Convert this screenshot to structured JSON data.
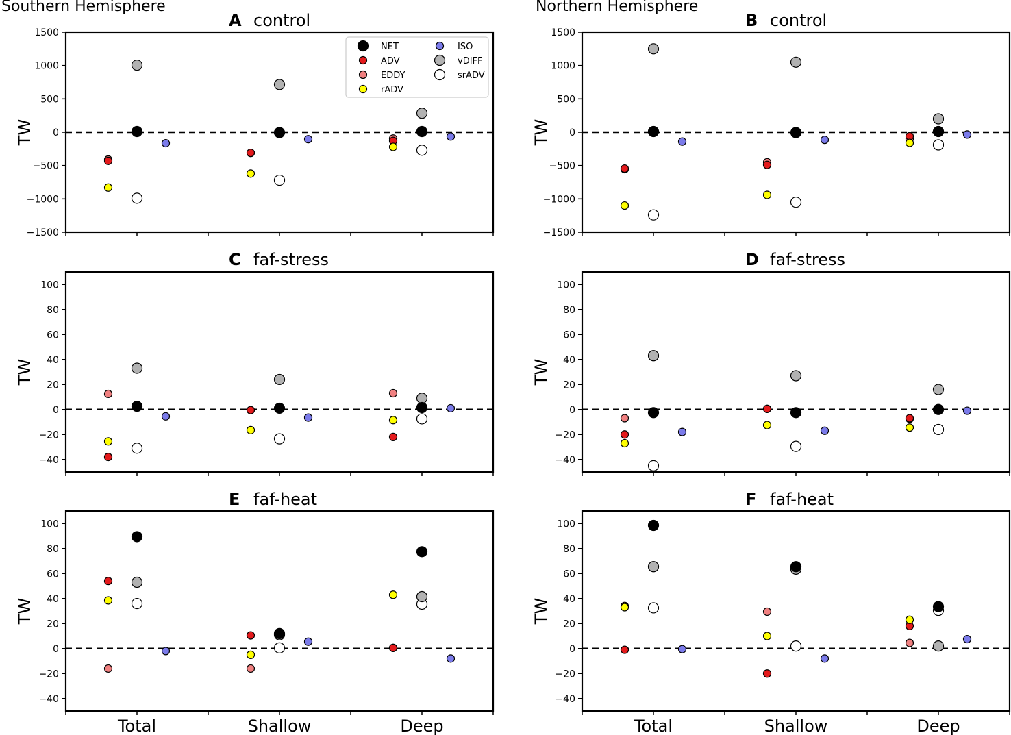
{
  "hemisphere_labels": {
    "left": "Southern Hemisphere",
    "right": "Northern Hemisphere"
  },
  "styles": {
    "NET": {
      "fill": "#000000",
      "large": true
    },
    "ADV": {
      "fill": "#e41a1c",
      "large": false
    },
    "EDDY": {
      "fill": "#f08080",
      "large": false
    },
    "rADV": {
      "fill": "#ffff00",
      "large": false
    },
    "ISO": {
      "fill": "#7b7bea",
      "large": false
    },
    "vDIFF": {
      "fill": "#b2b2b2",
      "large": true
    },
    "srADV": {
      "fill": "#ffffff",
      "large": true
    }
  },
  "legend": [
    {
      "key": "NET",
      "label": "NET"
    },
    {
      "key": "ADV",
      "label": "ADV"
    },
    {
      "key": "EDDY",
      "label": "EDDY"
    },
    {
      "key": "rADV",
      "label": "rADV"
    },
    {
      "key": "ISO",
      "label": "ISO"
    },
    {
      "key": "vDIFF",
      "label": "vDIFF"
    },
    {
      "key": "srADV",
      "label": "srADV"
    }
  ],
  "chart_data": [
    {
      "type": "scatter",
      "letter": "A",
      "title": "control",
      "ylabel": "TW",
      "categories": [
        "Total",
        "Shallow",
        "Deep"
      ],
      "ylim": [
        -1500,
        1500
      ],
      "yticks": [
        -1500,
        -1000,
        -500,
        0,
        500,
        1000,
        1500
      ],
      "reference_line": 0,
      "legend": true,
      "series": {
        "NET": [
          10,
          -5,
          10
        ],
        "ADV": [
          -430,
          -310,
          -130
        ],
        "EDDY": [
          -410,
          -310,
          -95
        ],
        "rADV": [
          -830,
          -620,
          -220
        ],
        "ISO": [
          -165,
          -105,
          -65
        ],
        "vDIFF": [
          1005,
          715,
          285
        ],
        "srADV": [
          -990,
          -720,
          -270
        ]
      }
    },
    {
      "type": "scatter",
      "letter": "B",
      "title": "control",
      "ylabel": "TW",
      "categories": [
        "Total",
        "Shallow",
        "Deep"
      ],
      "ylim": [
        -1500,
        1500
      ],
      "yticks": [
        -1500,
        -1000,
        -500,
        0,
        500,
        1000,
        1500
      ],
      "reference_line": 0,
      "legend": false,
      "series": {
        "NET": [
          10,
          -5,
          10
        ],
        "ADV": [
          -545,
          -490,
          -60
        ],
        "EDDY": [
          -555,
          -450,
          -100
        ],
        "rADV": [
          -1100,
          -940,
          -160
        ],
        "ISO": [
          -140,
          -115,
          -35
        ],
        "vDIFF": [
          1250,
          1050,
          200
        ],
        "srADV": [
          -1240,
          -1050,
          -190
        ]
      }
    },
    {
      "type": "scatter",
      "letter": "C",
      "title": "faf-stress",
      "ylabel": "TW",
      "categories": [
        "Total",
        "Shallow",
        "Deep"
      ],
      "ylim": [
        -50,
        110
      ],
      "yticks": [
        -40,
        -20,
        0,
        20,
        40,
        60,
        80,
        100
      ],
      "reference_line": 0,
      "legend": false,
      "series": {
        "NET": [
          2.5,
          1,
          1.5
        ],
        "ADV": [
          -38,
          -0.5,
          -22
        ],
        "EDDY": [
          12.5,
          -0.5,
          13
        ],
        "rADV": [
          -25.5,
          -16.5,
          -8.5
        ],
        "ISO": [
          -5.5,
          -6.5,
          1
        ],
        "vDIFF": [
          33,
          24,
          9
        ],
        "srADV": [
          -31,
          -23.5,
          -7.5
        ]
      }
    },
    {
      "type": "scatter",
      "letter": "D",
      "title": "faf-stress",
      "ylabel": "TW",
      "categories": [
        "Total",
        "Shallow",
        "Deep"
      ],
      "ylim": [
        -50,
        110
      ],
      "yticks": [
        -40,
        -20,
        0,
        20,
        40,
        60,
        80,
        100
      ],
      "reference_line": 0,
      "legend": false,
      "series": {
        "NET": [
          -2.5,
          -2.5,
          0
        ],
        "ADV": [
          -20,
          0.5,
          -7
        ],
        "EDDY": [
          -7,
          0.5,
          -7.5
        ],
        "rADV": [
          -27,
          -12.5,
          -14.5
        ],
        "ISO": [
          -18,
          -17,
          -1
        ],
        "vDIFF": [
          43,
          27,
          16
        ],
        "srADV": [
          -45,
          -29.5,
          -16
        ]
      }
    },
    {
      "type": "scatter",
      "letter": "E",
      "title": "faf-heat",
      "ylabel": "TW",
      "categories": [
        "Total",
        "Shallow",
        "Deep"
      ],
      "ylim": [
        -50,
        110
      ],
      "yticks": [
        -40,
        -20,
        0,
        20,
        40,
        60,
        80,
        100
      ],
      "reference_line": 0,
      "legend": false,
      "series": {
        "NET": [
          89.5,
          12,
          77.5
        ],
        "ADV": [
          54,
          10.5,
          0.5
        ],
        "EDDY": [
          -16,
          -16,
          0.5
        ],
        "rADV": [
          38.5,
          -5,
          43
        ],
        "ISO": [
          -2,
          5.5,
          -8
        ],
        "vDIFF": [
          53,
          11,
          41.5
        ],
        "srADV": [
          36,
          0.5,
          35.5
        ]
      }
    },
    {
      "type": "scatter",
      "letter": "F",
      "title": "faf-heat",
      "ylabel": "TW",
      "categories": [
        "Total",
        "Shallow",
        "Deep"
      ],
      "ylim": [
        -50,
        110
      ],
      "yticks": [
        -40,
        -20,
        0,
        20,
        40,
        60,
        80,
        100
      ],
      "reference_line": 0,
      "legend": false,
      "series": {
        "NET": [
          98.5,
          65.5,
          33.5
        ],
        "ADV": [
          -1,
          -20,
          18
        ],
        "EDDY": [
          34,
          29.5,
          4.5
        ],
        "rADV": [
          33,
          10,
          23
        ],
        "ISO": [
          -0.5,
          -8,
          7.5
        ],
        "vDIFF": [
          65.5,
          63.5,
          2
        ],
        "srADV": [
          32.5,
          2,
          30.5
        ]
      }
    }
  ]
}
